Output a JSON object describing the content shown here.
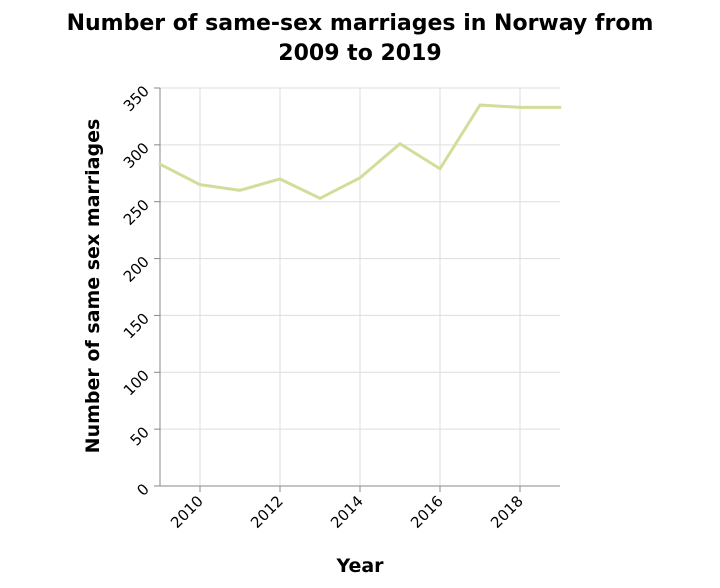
{
  "chart_data": {
    "type": "line",
    "title_lines": [
      "Number of same-sex marriages in Norway from",
      "2009 to 2019"
    ],
    "xlabel": "Year",
    "ylabel": "Number of same sex marriages",
    "x": [
      2009,
      2010,
      2011,
      2012,
      2013,
      2014,
      2015,
      2016,
      2017,
      2018,
      2019
    ],
    "series": [
      {
        "values": [
          283,
          265,
          260,
          270,
          253,
          271,
          301,
          279,
          335,
          333,
          333
        ]
      }
    ],
    "xlim": [
      2009,
      2019
    ],
    "ylim": [
      0,
      350
    ],
    "x_ticks": [
      "2010",
      "2012",
      "2014",
      "2016",
      "2018"
    ],
    "y_ticks": [
      "0",
      "50",
      "100",
      "150",
      "200",
      "250",
      "300",
      "350"
    ],
    "grid": true,
    "line_color": "#d3dd9a",
    "grid_color": "#dddddd",
    "axis_color": "#888888"
  }
}
